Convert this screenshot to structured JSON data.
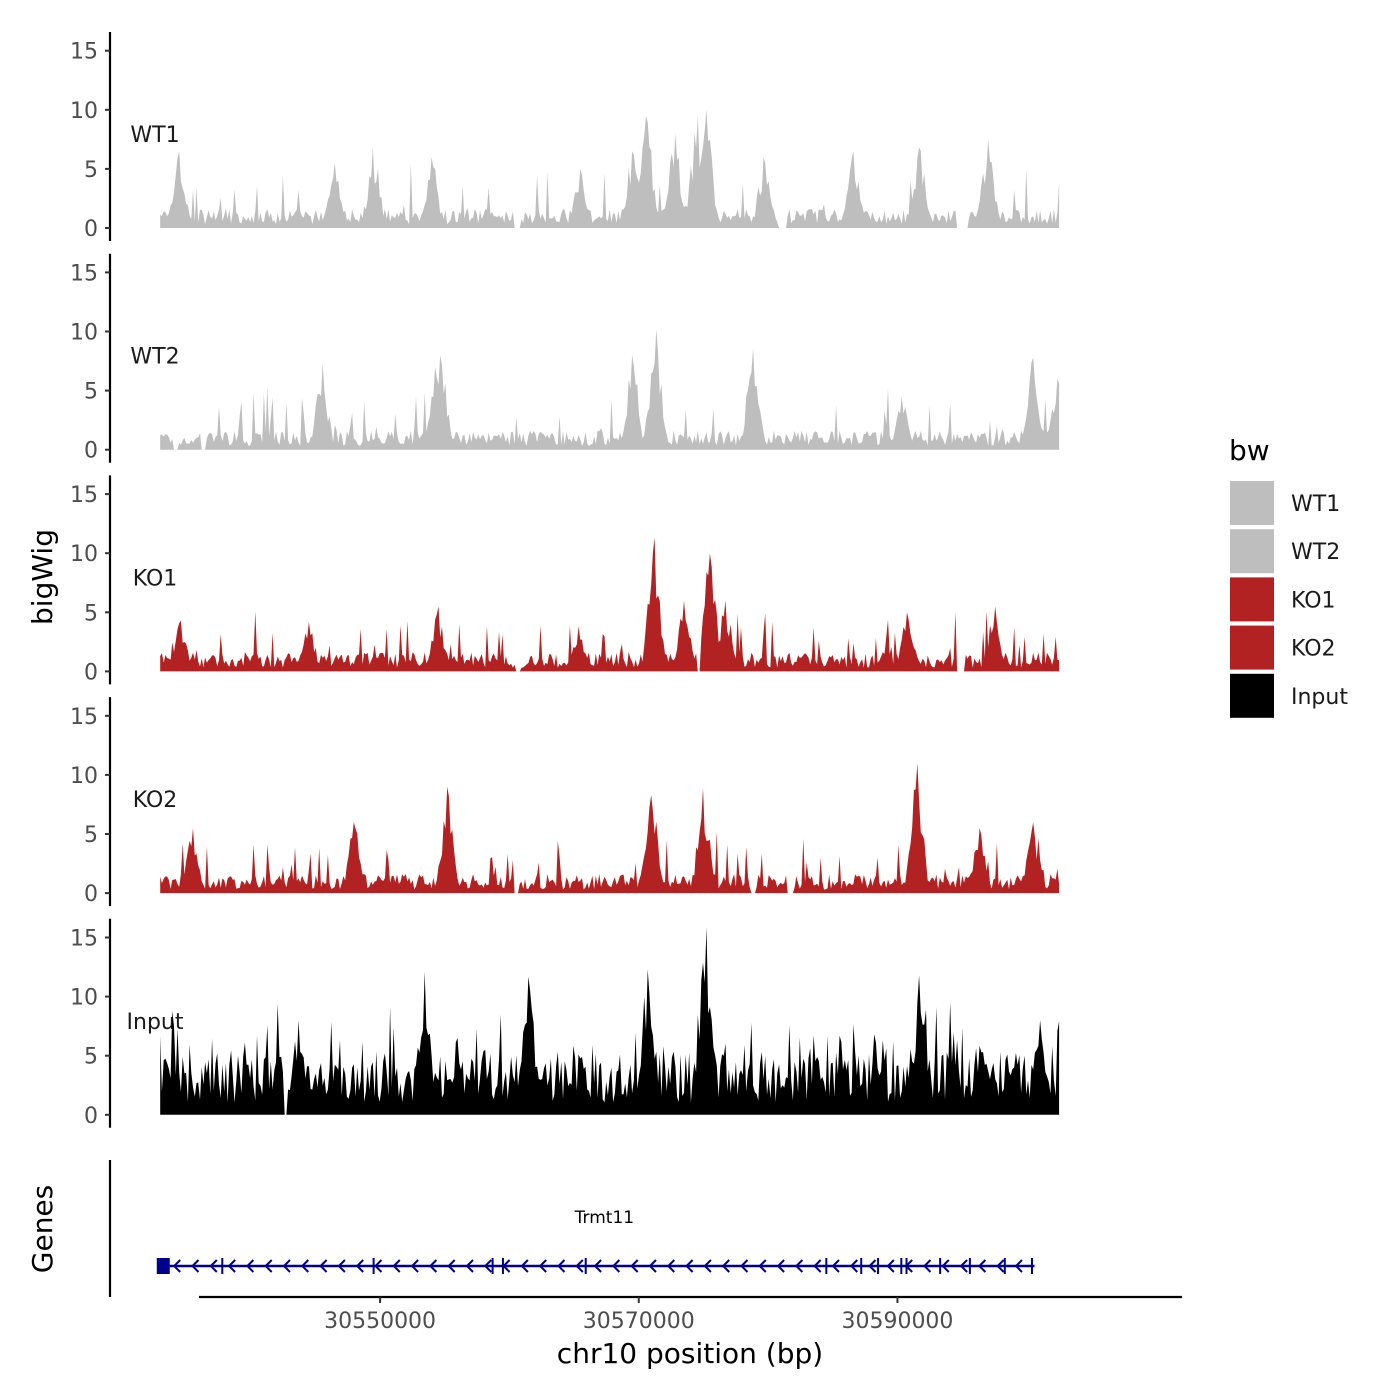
{
  "chart_data": {
    "type": "area",
    "title": "",
    "xlabel": "chr10 position (bp)",
    "ylabel": "bigWig",
    "genes_label": "Genes",
    "xlim": [
      30536000,
      30612000
    ],
    "data_range": [
      30533000,
      30602500
    ],
    "x_ticks": [
      30550000,
      30570000,
      30590000
    ],
    "x_tick_labels": [
      "30550000",
      "30570000",
      "30590000"
    ],
    "ylim": [
      0,
      16
    ],
    "y_ticks": [
      0,
      5,
      10,
      15
    ],
    "y_tick_labels": [
      "0",
      "5",
      "10",
      "15"
    ],
    "legend": {
      "title": "bw",
      "position": "right",
      "entries": [
        {
          "label": "WT1",
          "color": "#bebebe"
        },
        {
          "label": "WT2",
          "color": "#bebebe"
        },
        {
          "label": "KO1",
          "color": "#b22222"
        },
        {
          "label": "KO2",
          "color": "#b22222"
        },
        {
          "label": "Input",
          "color": "#000000"
        }
      ]
    },
    "series": [
      {
        "name": "WT1",
        "color": "#bebebe",
        "summary": "background ~1-3 with spikes 4-7; broad enrichment 30570000-30575500 peaking ~10; zero-coverage gaps near 30560500, 30581000, 30595000",
        "peaks": [
          {
            "x": 30534500,
            "y": 6.5
          },
          {
            "x": 30546500,
            "y": 5.5
          },
          {
            "x": 30549500,
            "y": 6.8
          },
          {
            "x": 30554000,
            "y": 6.0
          },
          {
            "x": 30565500,
            "y": 5.0
          },
          {
            "x": 30569500,
            "y": 6.5
          },
          {
            "x": 30570600,
            "y": 9.5
          },
          {
            "x": 30572800,
            "y": 8.0
          },
          {
            "x": 30574500,
            "y": 9.5
          },
          {
            "x": 30575200,
            "y": 10.0
          },
          {
            "x": 30579700,
            "y": 6.0
          },
          {
            "x": 30586600,
            "y": 6.5
          },
          {
            "x": 30591700,
            "y": 6.8
          },
          {
            "x": 30597000,
            "y": 7.5
          }
        ],
        "gaps": [
          [
            30560300,
            30560800
          ],
          [
            30580800,
            30581500
          ],
          [
            30594500,
            30595500
          ]
        ]
      },
      {
        "name": "WT2",
        "color": "#bebebe",
        "summary": "background ~1-3 with spikes 4-8; highest peak ~10 near 30571300; rising ~6-8 at right edge",
        "peaks": [
          {
            "x": 30545500,
            "y": 7.3
          },
          {
            "x": 30554200,
            "y": 7.0
          },
          {
            "x": 30554700,
            "y": 8.0
          },
          {
            "x": 30569500,
            "y": 8.0
          },
          {
            "x": 30571300,
            "y": 10.2
          },
          {
            "x": 30578800,
            "y": 8.6
          },
          {
            "x": 30590400,
            "y": 4.5
          },
          {
            "x": 30600500,
            "y": 7.8
          },
          {
            "x": 30602400,
            "y": 6.0
          }
        ],
        "gaps": [
          [
            30534000,
            30534400
          ],
          [
            30536200,
            30536500
          ]
        ]
      },
      {
        "name": "KO1",
        "color": "#b22222",
        "summary": "background ~1-3 with spikes 3-5; peaks near 30554500 (~5.5), 30571200 (~11.3), 30575500 (~10)",
        "peaks": [
          {
            "x": 30534600,
            "y": 4.3
          },
          {
            "x": 30544500,
            "y": 4.2
          },
          {
            "x": 30554500,
            "y": 5.5
          },
          {
            "x": 30565300,
            "y": 3.8
          },
          {
            "x": 30571200,
            "y": 11.3
          },
          {
            "x": 30573500,
            "y": 6.0
          },
          {
            "x": 30575500,
            "y": 10.0
          },
          {
            "x": 30576700,
            "y": 6.0
          },
          {
            "x": 30590800,
            "y": 5.0
          },
          {
            "x": 30597500,
            "y": 5.5
          }
        ],
        "gaps": [
          [
            30560400,
            30560900
          ],
          [
            30574500,
            30574700
          ],
          [
            30594600,
            30595200
          ]
        ]
      },
      {
        "name": "KO2",
        "color": "#b22222",
        "summary": "background ~1-3 with spikes 4-6; peaks near 30555200 (~9), 30571000 (~8.3), 30575000 (~8.9), 30591500 (~11)",
        "peaks": [
          {
            "x": 30535500,
            "y": 5.5
          },
          {
            "x": 30548000,
            "y": 6.0
          },
          {
            "x": 30555200,
            "y": 9.0
          },
          {
            "x": 30571000,
            "y": 8.3
          },
          {
            "x": 30575000,
            "y": 8.9
          },
          {
            "x": 30591500,
            "y": 11.0
          },
          {
            "x": 30596300,
            "y": 5.5
          },
          {
            "x": 30600500,
            "y": 6.0
          }
        ],
        "gaps": [
          [
            30560300,
            30560700
          ],
          [
            30578600,
            30579000
          ],
          [
            30581500,
            30582000
          ]
        ]
      },
      {
        "name": "Input",
        "color": "#000000",
        "summary": "dense coverage ~3-7 with frequent spikes 8-10; tallest peaks near 30561500 (~11.7), 30570700 (~12.3), 30575200 (~15.9), 30591700 (~11.8)",
        "peaks": [
          {
            "x": 30543700,
            "y": 8.0
          },
          {
            "x": 30553400,
            "y": 12.1
          },
          {
            "x": 30561500,
            "y": 11.7
          },
          {
            "x": 30570700,
            "y": 12.3
          },
          {
            "x": 30575200,
            "y": 15.9
          },
          {
            "x": 30591700,
            "y": 11.8
          },
          {
            "x": 30601000,
            "y": 8.0
          }
        ],
        "gaps": [
          [
            30542500,
            30542800
          ]
        ]
      }
    ],
    "genes": [
      {
        "name": "Trmt11",
        "strand": "-",
        "start": 30533000,
        "end": 30600600,
        "color": "#00008b",
        "exons": [
          30533200,
          30537800,
          30549500,
          30558700,
          30559500,
          30565900,
          30584500,
          30587200,
          30588500,
          30590300,
          30590700,
          30593300,
          30595600,
          30598300,
          30600400
        ]
      }
    ]
  }
}
